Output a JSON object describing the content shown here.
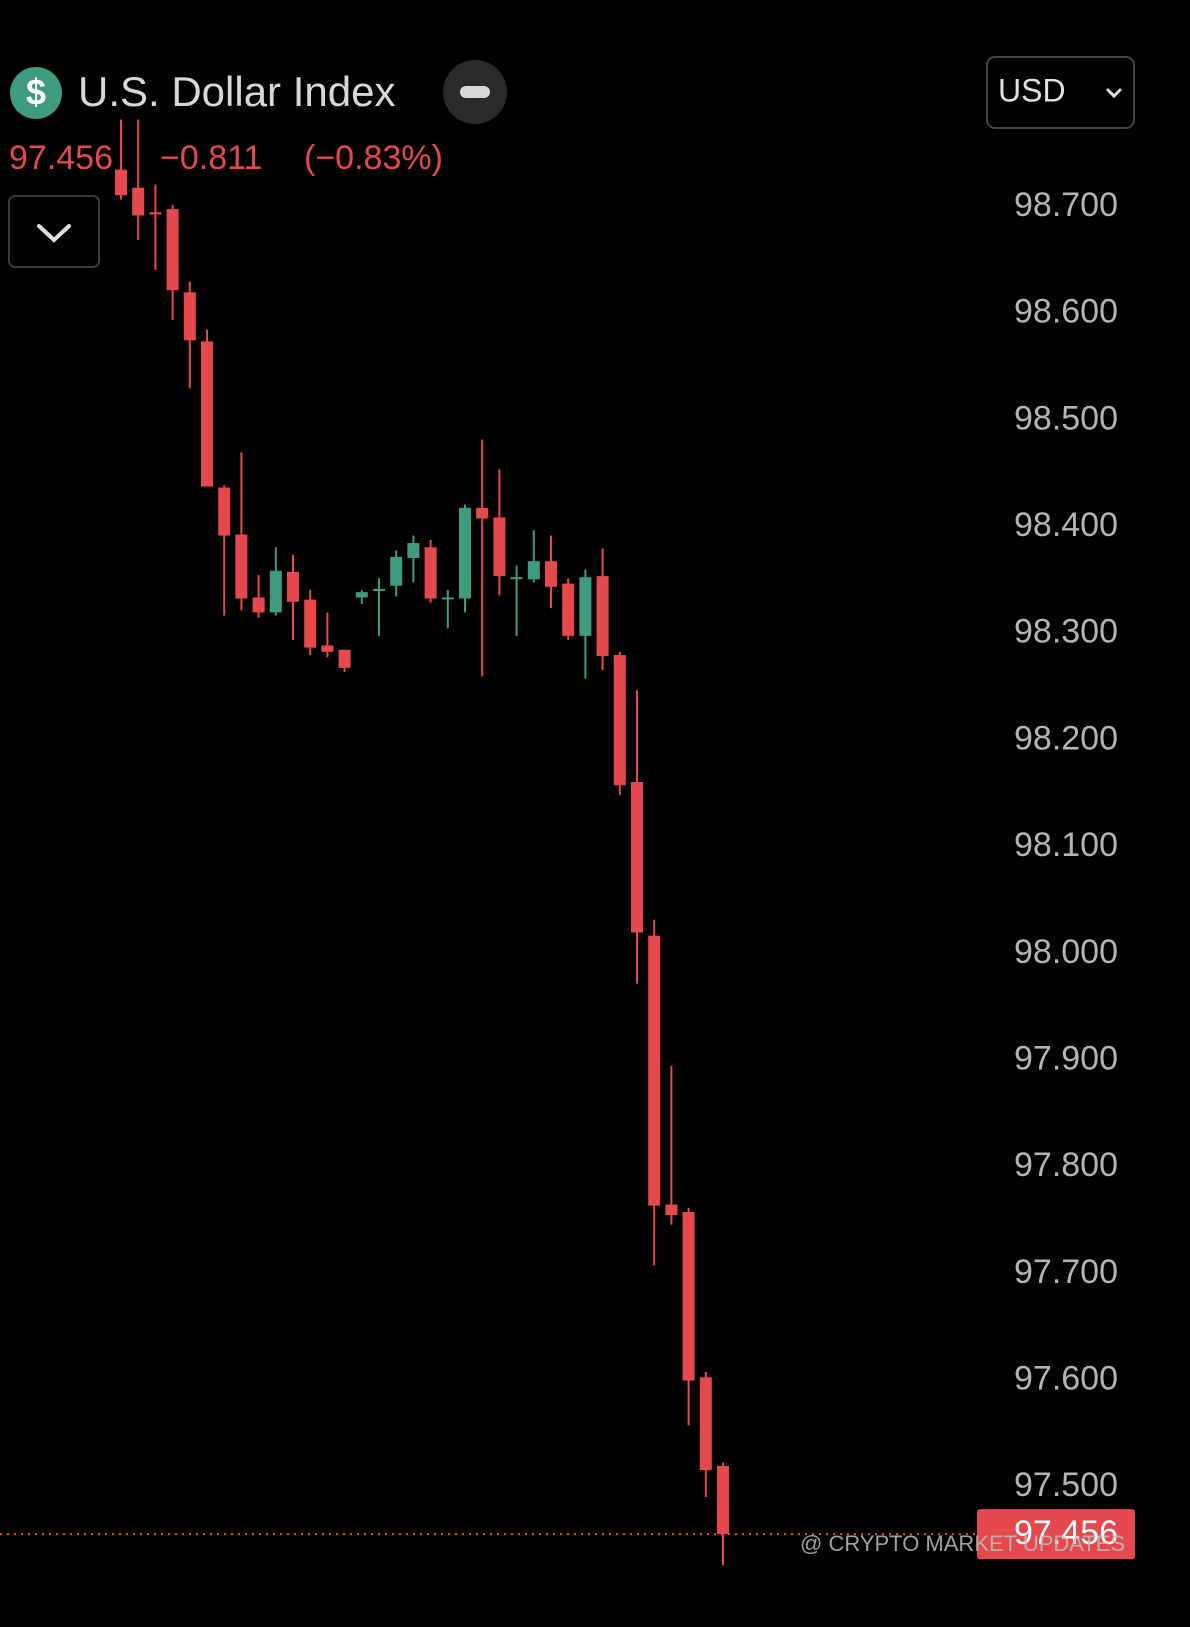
{
  "chart_data": {
    "type": "candlestick",
    "title": "U.S. Dollar Index",
    "price": 97.456,
    "change": {
      "value": -0.811,
      "label": "−0.811"
    },
    "change_percent": {
      "value": -0.83,
      "label": "(−0.83%)"
    },
    "currency": "USD",
    "watermark": "@ CRYPTO MARKET UPDATES",
    "colors": {
      "up": "#3f9b7f",
      "down": "#e5484d"
    },
    "ylim": [
      97.369,
      98.894
    ],
    "yticks": [
      {
        "value": 98.7,
        "label": "98.700"
      },
      {
        "value": 98.6,
        "label": "98.600"
      },
      {
        "value": 98.5,
        "label": "98.500"
      },
      {
        "value": 98.4,
        "label": "98.400"
      },
      {
        "value": 98.3,
        "label": "98.300"
      },
      {
        "value": 98.2,
        "label": "98.200"
      },
      {
        "value": 98.1,
        "label": "98.100"
      },
      {
        "value": 98.0,
        "label": "98.000"
      },
      {
        "value": 97.9,
        "label": "97.900"
      },
      {
        "value": 97.8,
        "label": "97.800"
      },
      {
        "value": 97.7,
        "label": "97.700"
      },
      {
        "value": 97.6,
        "label": "97.600"
      },
      {
        "value": 97.5,
        "label": "97.500"
      }
    ],
    "open": [
      98.735,
      98.718,
      98.695,
      98.698,
      98.62,
      98.574,
      98.437,
      98.393,
      98.334,
      98.32,
      98.358,
      98.332,
      98.289,
      98.285,
      98.334,
      98.341,
      98.345,
      98.371,
      98.381,
      98.333,
      98.333,
      98.418,
      98.409,
      98.352,
      98.351,
      98.368,
      98.347,
      98.298,
      98.354,
      98.28,
      98.161,
      98.017,
      97.765,
      97.758,
      97.603,
      97.52
    ],
    "high": [
      98.782,
      98.782,
      98.721,
      98.702,
      98.63,
      98.585,
      98.439,
      98.47,
      98.355,
      98.381,
      98.374,
      98.341,
      98.32,
      98.285,
      98.341,
      98.352,
      98.378,
      98.392,
      98.388,
      98.341,
      98.421,
      98.482,
      98.454,
      98.364,
      98.397,
      98.392,
      98.352,
      98.36,
      98.38,
      98.283,
      98.247,
      98.032,
      97.895,
      97.762,
      97.608,
      97.523
    ],
    "low": [
      98.707,
      98.669,
      98.641,
      98.594,
      98.53,
      98.438,
      98.317,
      98.322,
      98.315,
      98.317,
      98.294,
      98.28,
      98.278,
      98.264,
      98.328,
      98.298,
      98.335,
      98.348,
      98.329,
      98.305,
      98.32,
      98.26,
      98.336,
      98.298,
      98.348,
      98.324,
      98.294,
      98.258,
      98.266,
      98.149,
      97.972,
      97.708,
      97.746,
      97.558,
      97.491,
      97.427
    ],
    "close": [
      98.711,
      98.692,
      98.693,
      98.622,
      98.575,
      98.438,
      98.392,
      98.333,
      98.32,
      98.359,
      98.33,
      98.287,
      98.283,
      98.268,
      98.339,
      98.342,
      98.372,
      98.385,
      98.333,
      98.334,
      98.418,
      98.408,
      98.354,
      98.353,
      98.368,
      98.344,
      98.298,
      98.353,
      98.279,
      98.158,
      98.02,
      97.764,
      97.755,
      97.6,
      97.516,
      97.456
    ]
  }
}
